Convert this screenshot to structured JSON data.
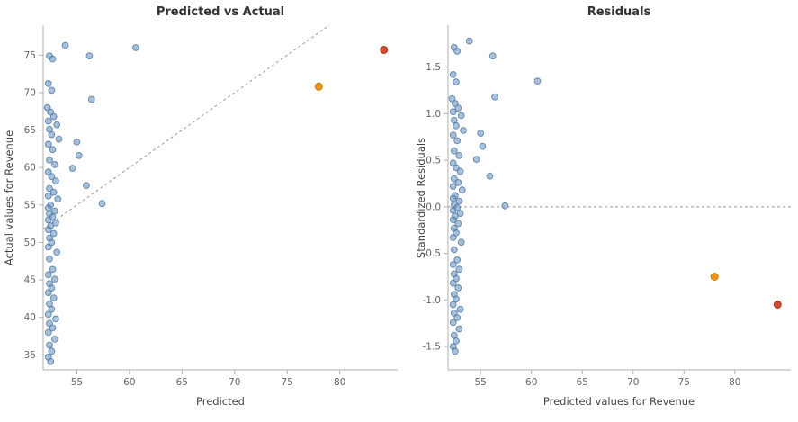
{
  "colors": {
    "point_blue": "#7096c0",
    "point_blue_edge": "#4d79a6",
    "point_orange": "#e8961e",
    "point_orange_edge": "#c97e10",
    "point_red": "#cc4b37",
    "point_red_edge": "#a93a28",
    "axis_line": "#b0b0b0",
    "ref_line": "#999999"
  },
  "records": {
    "fields": [
      "predicted",
      "actual",
      "std_residual"
    ],
    "blue": [
      [
        53.9,
        76.3,
        1.78
      ],
      [
        52.4,
        74.9,
        1.71
      ],
      [
        52.7,
        74.5,
        1.67
      ],
      [
        56.2,
        74.9,
        1.62
      ],
      [
        60.6,
        76.0,
        1.35
      ],
      [
        52.3,
        71.2,
        1.42
      ],
      [
        52.6,
        70.3,
        1.34
      ],
      [
        56.4,
        69.1,
        1.18
      ],
      [
        52.2,
        68.0,
        1.16
      ],
      [
        52.5,
        67.4,
        1.11
      ],
      [
        52.8,
        66.8,
        1.06
      ],
      [
        52.3,
        66.2,
        1.02
      ],
      [
        53.1,
        65.7,
        0.98
      ],
      [
        52.4,
        65.1,
        0.93
      ],
      [
        52.6,
        64.4,
        0.87
      ],
      [
        53.3,
        63.8,
        0.82
      ],
      [
        55.0,
        63.4,
        0.79
      ],
      [
        52.3,
        63.1,
        0.77
      ],
      [
        52.7,
        62.4,
        0.71
      ],
      [
        55.2,
        61.6,
        0.65
      ],
      [
        52.4,
        61.0,
        0.6
      ],
      [
        52.9,
        60.4,
        0.55
      ],
      [
        54.6,
        59.9,
        0.51
      ],
      [
        52.3,
        59.4,
        0.47
      ],
      [
        52.6,
        58.8,
        0.42
      ],
      [
        53.0,
        58.2,
        0.38
      ],
      [
        55.9,
        57.6,
        0.33
      ],
      [
        52.4,
        57.2,
        0.3
      ],
      [
        52.8,
        56.7,
        0.26
      ],
      [
        52.3,
        56.2,
        0.22
      ],
      [
        53.2,
        55.8,
        0.18
      ],
      [
        57.4,
        55.2,
        0.01
      ],
      [
        52.5,
        55.0,
        0.12
      ],
      [
        52.3,
        54.6,
        0.09
      ],
      [
        52.9,
        54.2,
        0.06
      ],
      [
        52.4,
        53.8,
        0.02
      ],
      [
        52.7,
        53.4,
        -0.01
      ],
      [
        52.3,
        53.0,
        -0.04
      ],
      [
        53.0,
        52.6,
        -0.07
      ],
      [
        52.5,
        52.2,
        -0.1
      ],
      [
        52.3,
        51.7,
        -0.14
      ],
      [
        52.8,
        51.2,
        -0.18
      ],
      [
        52.4,
        50.6,
        -0.23
      ],
      [
        52.6,
        50.0,
        -0.28
      ],
      [
        52.3,
        49.4,
        -0.33
      ],
      [
        53.1,
        48.7,
        -0.38
      ],
      [
        52.4,
        47.8,
        -0.46
      ],
      [
        52.7,
        46.4,
        -0.57
      ],
      [
        52.3,
        45.7,
        -0.62
      ],
      [
        52.9,
        45.1,
        -0.67
      ],
      [
        52.4,
        44.5,
        -0.72
      ],
      [
        52.6,
        43.9,
        -0.77
      ],
      [
        52.3,
        43.3,
        -0.82
      ],
      [
        52.8,
        42.6,
        -0.87
      ],
      [
        52.4,
        41.8,
        -0.94
      ],
      [
        52.6,
        41.1,
        -0.99
      ],
      [
        52.3,
        40.4,
        -1.05
      ],
      [
        53.0,
        39.8,
        -1.1
      ],
      [
        52.4,
        39.2,
        -1.14
      ],
      [
        52.7,
        38.6,
        -1.19
      ],
      [
        52.3,
        38.0,
        -1.24
      ],
      [
        52.9,
        37.1,
        -1.31
      ],
      [
        52.4,
        36.3,
        -1.38
      ],
      [
        52.6,
        35.5,
        -1.44
      ],
      [
        52.3,
        34.7,
        -1.5
      ],
      [
        52.5,
        34.1,
        -1.55
      ]
    ],
    "orange": [
      78.0,
      70.8,
      -0.75
    ],
    "red": [
      84.2,
      75.7,
      -1.05
    ]
  },
  "chart_data": [
    {
      "type": "scatter",
      "title": "Predicted vs Actual",
      "xlabel": "Predicted",
      "ylabel": "Actual values for Revenue",
      "xlim": [
        51.8,
        85.5
      ],
      "ylim": [
        33,
        79
      ],
      "xticks": [
        55,
        60,
        65,
        70,
        75,
        80
      ],
      "xtick_labels": [
        "55",
        "60",
        "65",
        "70",
        "75",
        "80"
      ],
      "yticks": [
        35,
        40,
        45,
        50,
        55,
        60,
        65,
        70,
        75
      ],
      "ytick_labels": [
        "35",
        "40",
        "45",
        "50",
        "55",
        "60",
        "65",
        "70",
        "75"
      ],
      "ref_line": "identity",
      "x_index": 0,
      "y_index": 1,
      "grid": false,
      "legend": "none"
    },
    {
      "type": "scatter",
      "title": "Residuals",
      "xlabel": "Predicted values for Revenue",
      "ylabel": "Standardized Residuals",
      "xlim": [
        51.8,
        85.5
      ],
      "ylim": [
        -1.75,
        1.95
      ],
      "xticks": [
        55,
        60,
        65,
        70,
        75,
        80
      ],
      "xtick_labels": [
        "55",
        "60",
        "65",
        "70",
        "75",
        "80"
      ],
      "yticks": [
        -1.5,
        -1.0,
        -0.5,
        0.0,
        0.5,
        1.0,
        1.5
      ],
      "ytick_labels": [
        "-1.5",
        "-1.0",
        "-0.5",
        "0.0",
        "0.5",
        "1.0",
        "1.5"
      ],
      "ref_line": "zero",
      "x_index": 0,
      "y_index": 2,
      "grid": false,
      "legend": "none"
    }
  ]
}
